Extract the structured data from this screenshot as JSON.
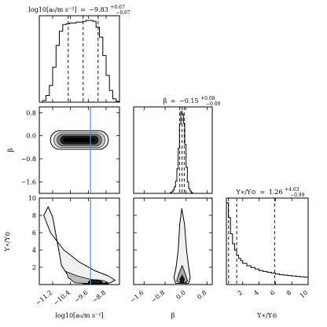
{
  "chart_data": {
    "type": "corner",
    "parameters": [
      {
        "key": "a0",
        "axis_label": "log10[a₀/m s⁻²]",
        "title": "log10[a₀/m s⁻²] = −9.83⁺⁰·⁶⁷₋₀.₆⁷",
        "title_value": "−9.83",
        "title_plus": "+0.67",
        "title_minus": "−0.67",
        "range": [
          -11.8,
          -8.2
        ],
        "ticks": [
          -11.2,
          -10.4,
          -9.6,
          -8.8
        ],
        "tick_labels": [
          "−11.2",
          "−10.4",
          "−9.6",
          "−8.8"
        ],
        "quantiles": [
          -10.5,
          -9.83,
          -9.16
        ],
        "histogram": {
          "edges": [
            -11.8,
            -11.65,
            -11.5,
            -11.35,
            -11.2,
            -11.05,
            -10.9,
            -10.75,
            -10.6,
            -10.45,
            -10.3,
            -10.15,
            -10.0,
            -9.85,
            -9.7,
            -9.55,
            -9.4,
            -9.25,
            -9.1,
            -8.95,
            -8.8,
            -8.65,
            -8.5,
            -8.35,
            -8.2
          ],
          "counts": [
            0.0,
            0.02,
            0.08,
            0.2,
            0.42,
            0.68,
            0.85,
            0.93,
            0.94,
            0.95,
            0.95,
            0.96,
            0.96,
            0.97,
            0.98,
            0.98,
            0.97,
            0.9,
            0.78,
            0.56,
            0.32,
            0.14,
            0.04,
            0.01
          ]
        }
      },
      {
        "key": "beta",
        "axis_label": "β",
        "title": "β = −0.15⁺⁰·⁰⁸₋₀.₀₉",
        "title_value": "−0.15",
        "title_plus": "+0.08",
        "title_minus": "−0.09",
        "range": [
          -2.0,
          1.0
        ],
        "ticks": [
          -1.6,
          -0.8,
          0.0,
          0.8
        ],
        "tick_labels": [
          "−1.6",
          "−0.8",
          "0.0",
          "0.8"
        ],
        "quantiles": [
          -0.24,
          -0.15,
          -0.07
        ],
        "histogram": {
          "edges": [
            -0.6,
            -0.55,
            -0.5,
            -0.45,
            -0.4,
            -0.35,
            -0.3,
            -0.25,
            -0.2,
            -0.15,
            -0.1,
            -0.05,
            0.0,
            0.05,
            0.1,
            0.15,
            0.2,
            0.25,
            0.3
          ],
          "counts": [
            0.01,
            0.02,
            0.04,
            0.08,
            0.15,
            0.3,
            0.55,
            0.85,
            1.0,
            0.97,
            0.86,
            0.6,
            0.32,
            0.14,
            0.06,
            0.03,
            0.01,
            0.0
          ]
        }
      },
      {
        "key": "upsilon",
        "axis_label": "Υ∗/Υ⊙",
        "title": "Υ∗/Υ⊙ = 1.26⁺⁴·⁶³₋₀.₉₉",
        "title_value": "1.26",
        "title_plus": "+4.63",
        "title_minus": "−0.99",
        "range": [
          0,
          10
        ],
        "ticks": [
          2,
          4,
          6,
          8,
          10
        ],
        "tick_labels": [
          "2",
          "4",
          "6",
          "8",
          "10"
        ],
        "quantiles": [
          0.27,
          1.26,
          5.89
        ],
        "histogram": {
          "edges": [
            0.0,
            0.25,
            0.5,
            0.75,
            1.0,
            1.25,
            1.5,
            1.75,
            2.0,
            2.5,
            3.0,
            3.5,
            4.0,
            4.5,
            5.0,
            5.5,
            6.0,
            6.5,
            7.0,
            7.5,
            8.0,
            8.5,
            9.0,
            9.5,
            10.0
          ],
          "counts": [
            1.0,
            0.82,
            0.62,
            0.5,
            0.42,
            0.36,
            0.32,
            0.29,
            0.26,
            0.23,
            0.21,
            0.19,
            0.17,
            0.16,
            0.15,
            0.14,
            0.13,
            0.12,
            0.115,
            0.11,
            0.105,
            0.1,
            0.095,
            0.09
          ]
        }
      }
    ],
    "upsilon_panel_ticks_y": [
      2,
      4,
      6,
      8,
      10
    ],
    "beta_panel_ticks_y": [
      -1.6,
      -0.8,
      0.0,
      0.8
    ],
    "truth_line_a0": -9.5,
    "truth_line_color": "#4a90d9",
    "contour_fill_colors": [
      "#f2f2f2",
      "#c8c8c8",
      "#7a7a7a",
      "#1e1e1e"
    ],
    "contours": {
      "a0_beta": {
        "center": [
          -10.0,
          -0.15
        ],
        "half_widths": [
          [
            1.3,
            0.32
          ],
          [
            1.15,
            0.26
          ],
          [
            1.0,
            0.2
          ],
          [
            0.85,
            0.14
          ]
        ]
      },
      "a0_upsilon": {
        "outer": [
          [
            -11.4,
            9.0
          ],
          [
            -11.6,
            8.0
          ],
          [
            -11.3,
            6.0
          ],
          [
            -10.7,
            4.0
          ],
          [
            -10.0,
            2.6
          ],
          [
            -9.3,
            1.6
          ],
          [
            -8.7,
            1.0
          ],
          [
            -8.4,
            0.5
          ],
          [
            -8.7,
            0.1
          ],
          [
            -9.8,
            0.1
          ],
          [
            -10.4,
            0.6
          ],
          [
            -10.8,
            2.2
          ],
          [
            -11.0,
            5.0
          ],
          [
            -11.2,
            7.8
          ]
        ],
        "inner": [
          [
            -10.6,
            1.5
          ],
          [
            -10.1,
            1.0
          ],
          [
            -9.5,
            0.6
          ],
          [
            -8.9,
            0.45
          ],
          [
            -8.7,
            0.2
          ],
          [
            -9.4,
            0.1
          ],
          [
            -10.2,
            0.2
          ],
          [
            -10.5,
            0.8
          ]
        ],
        "core": [
          [
            -9.55,
            0.5
          ],
          [
            -9.15,
            0.55
          ],
          [
            -8.95,
            0.3
          ],
          [
            -9.1,
            0.1
          ],
          [
            -9.6,
            0.15
          ]
        ]
      },
      "beta_upsilon": {
        "outer": [
          [
            -0.16,
            8.8
          ],
          [
            -0.06,
            7.0
          ],
          [
            0.02,
            4.0
          ],
          [
            0.1,
            2.0
          ],
          [
            0.16,
            0.8
          ],
          [
            0.1,
            0.15
          ],
          [
            -0.4,
            0.15
          ],
          [
            -0.46,
            0.8
          ],
          [
            -0.38,
            2.0
          ],
          [
            -0.3,
            4.0
          ],
          [
            -0.24,
            7.0
          ]
        ],
        "inner": [
          [
            -0.15,
            2.2
          ],
          [
            -0.02,
            1.2
          ],
          [
            0.06,
            0.4
          ],
          [
            -0.15,
            0.12
          ],
          [
            -0.36,
            0.4
          ],
          [
            -0.28,
            1.2
          ]
        ],
        "core": [
          [
            -0.15,
            1.1
          ],
          [
            -0.06,
            0.6
          ],
          [
            -0.1,
            0.2
          ],
          [
            -0.2,
            0.2
          ],
          [
            -0.24,
            0.6
          ]
        ]
      }
    }
  }
}
